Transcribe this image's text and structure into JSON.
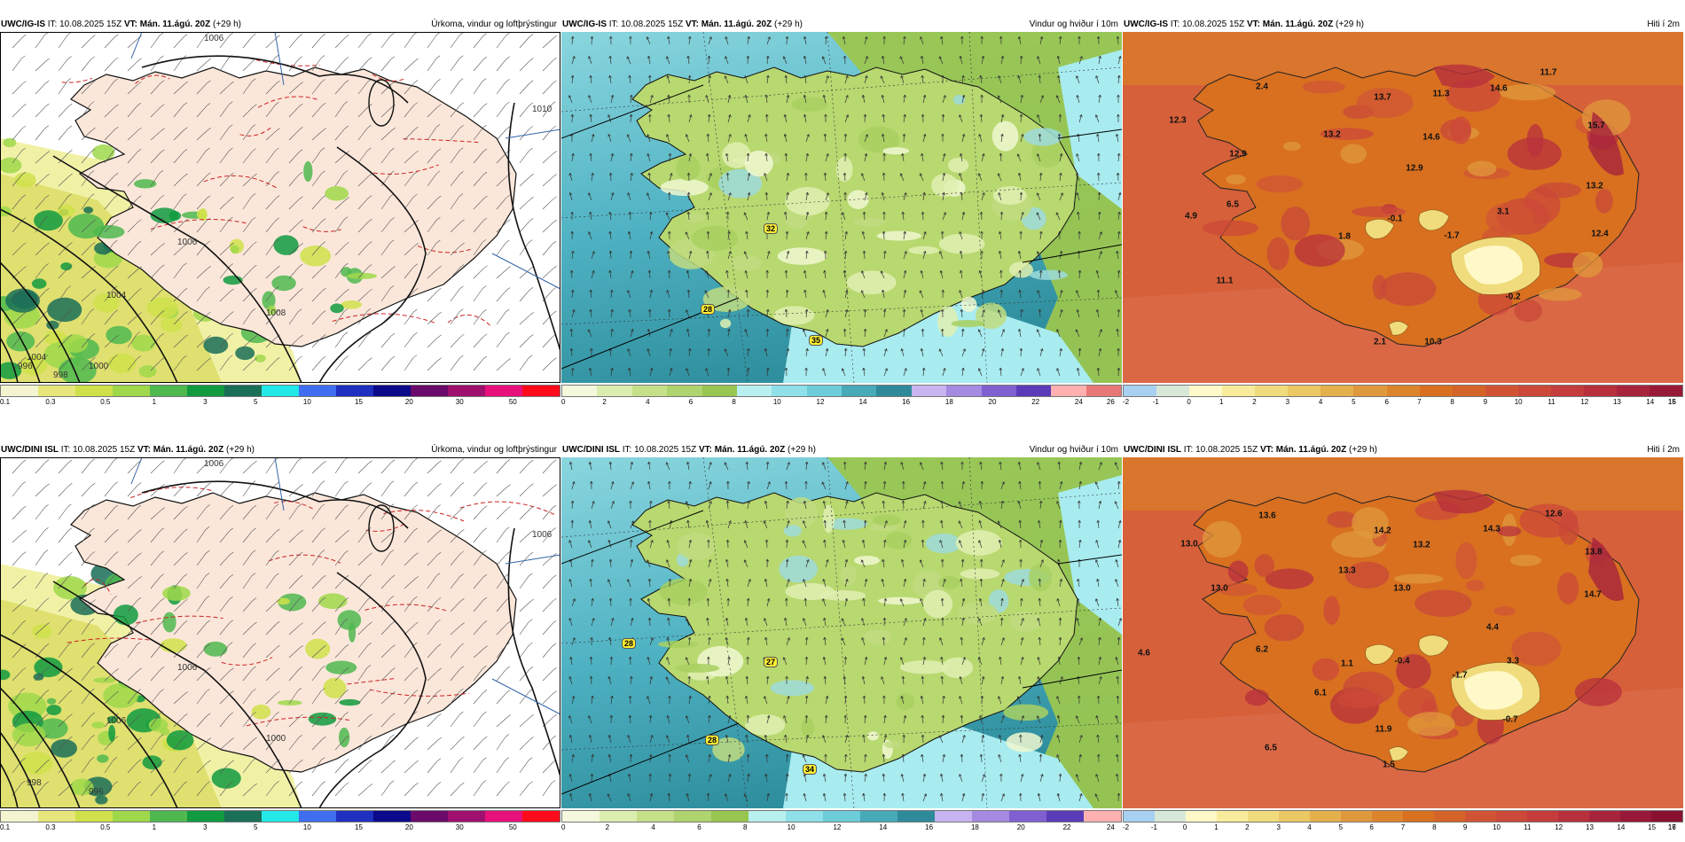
{
  "rows": [
    {
      "panels": [
        {
          "type": "precip",
          "model": "UWC/IG-IS",
          "it": "IT: 10.08.2025 15Z",
          "vt_label": "VT:",
          "vt_value": "Mán. 11.ágú. 20Z",
          "lead": "(+29 h)",
          "title": "Úrkoma, vindur og loftþrýstingur",
          "colorbar": [
            "#f4f4d0",
            "#e6e67a",
            "#cfe04a",
            "#9fd84a",
            "#4fb84f",
            "#119a3f",
            "#1a6f57",
            "#22e8e8",
            "#3f6ff0",
            "#1f2fbf",
            "#0a0a8a",
            "#6a0a6a",
            "#a0106e",
            "#e8107a",
            "#ff0a1a"
          ],
          "ticks": [
            {
              "t": "0.1",
              "p": 0
            },
            {
              "t": "0.3",
              "p": 9
            },
            {
              "t": "0.5",
              "p": 18.8
            },
            {
              "t": "1",
              "p": 27.5
            },
            {
              "t": "3",
              "p": 36.6
            },
            {
              "t": "5",
              "p": 45.6
            },
            {
              "t": "10",
              "p": 54.8
            },
            {
              "t": "15",
              "p": 64
            },
            {
              "t": "20",
              "p": 73
            },
            {
              "t": "30",
              "p": 82
            },
            {
              "t": "50",
              "p": 91.5
            }
          ],
          "isobars": [
            "1006",
            "1006",
            "1004",
            "1008",
            "1010",
            "1004",
            "1000",
            "998",
            "996"
          ],
          "badges": []
        },
        {
          "type": "wind",
          "model": "UWC/IG-IS",
          "it": "IT: 10.08.2025 15Z",
          "vt_label": "VT:",
          "vt_value": "Mán. 11.ágú. 20Z",
          "lead": "(+29 h)",
          "title": "Vindur og hviður í 10m",
          "colorbar": [
            "#f4f8dc",
            "#dcedb0",
            "#c6e08a",
            "#afd36e",
            "#98c650",
            "#b8f0f0",
            "#8fe0e8",
            "#6ccdd8",
            "#46aab8",
            "#2e8a9a",
            "#c8b4f0",
            "#a48ae0",
            "#8060d0",
            "#5a3cb8",
            "#ffb0b0",
            "#e87878"
          ],
          "ticks": [
            {
              "t": "0",
              "p": 0
            },
            {
              "t": "2",
              "p": 7.7
            },
            {
              "t": "4",
              "p": 15.4
            },
            {
              "t": "6",
              "p": 23.1
            },
            {
              "t": "8",
              "p": 30.8
            },
            {
              "t": "10",
              "p": 38.5
            },
            {
              "t": "12",
              "p": 46.2
            },
            {
              "t": "14",
              "p": 53.8
            },
            {
              "t": "16",
              "p": 61.5
            },
            {
              "t": "18",
              "p": 69.2
            },
            {
              "t": "20",
              "p": 76.9
            },
            {
              "t": "22",
              "p": 84.6
            },
            {
              "t": "24",
              "p": 92.3
            },
            {
              "t": "26",
              "p": 98
            }
          ],
          "badges": [
            "32",
            "28",
            "35"
          ]
        },
        {
          "type": "temp",
          "model": "UWC/IG-IS",
          "it": "IT: 10.08.2025 15Z",
          "vt_label": "VT:",
          "vt_value": "Mán. 11.ágú. 20Z",
          "lead": "(+29 h)",
          "title": "Hiti í 2m",
          "colorbar": [
            "#a8d0f0",
            "#d8e8d8",
            "#fff8c8",
            "#f8ec9c",
            "#f0dc7c",
            "#ecc864",
            "#e4b04c",
            "#e0983c",
            "#dc842c",
            "#d87020",
            "#d46428",
            "#d05434",
            "#cc4838",
            "#c43c3c",
            "#b8303c",
            "#a8243c",
            "#981838"
          ],
          "ticks": [
            {
              "t": "-2",
              "p": 0
            },
            {
              "t": "-1",
              "p": 5.9
            },
            {
              "t": "0",
              "p": 11.8
            },
            {
              "t": "1",
              "p": 17.6
            },
            {
              "t": "2",
              "p": 23.5
            },
            {
              "t": "3",
              "p": 29.4
            },
            {
              "t": "4",
              "p": 35.3
            },
            {
              "t": "5",
              "p": 41.2
            },
            {
              "t": "6",
              "p": 47.1
            },
            {
              "t": "7",
              "p": 52.9
            },
            {
              "t": "8",
              "p": 58.8
            },
            {
              "t": "9",
              "p": 64.7
            },
            {
              "t": "10",
              "p": 70.6
            },
            {
              "t": "11",
              "p": 76.5
            },
            {
              "t": "12",
              "p": 82.4
            },
            {
              "t": "13",
              "p": 88.2
            },
            {
              "t": "14",
              "p": 94.1
            },
            {
              "t": "15",
              "p": 100
            },
            {
              "t": "16",
              "p": 106
            }
          ],
          "labels": [
            "2.4",
            "11.7",
            "13.7",
            "11.3",
            "14.6",
            "12.3",
            "13.2",
            "14.6",
            "15.7",
            "12.9",
            "12.9",
            "13.2",
            "6.5",
            "4.9",
            "1.8",
            "-0.1",
            "3.1",
            "-1.7",
            "12.4",
            "11.1",
            "-0.2",
            "10.3",
            "2.1"
          ]
        }
      ]
    },
    {
      "panels": [
        {
          "type": "precip",
          "model": "UWC/DINI ISL",
          "it": "IT: 10.08.2025 15Z",
          "vt_label": "VT:",
          "vt_value": "Mán. 11.ágú. 20Z",
          "lead": "(+29 h)",
          "title": "Úrkoma, vindur og loftþrýstingur",
          "colorbar": [
            "#f4f4d0",
            "#e6e67a",
            "#cfe04a",
            "#9fd84a",
            "#4fb84f",
            "#119a3f",
            "#1a6f57",
            "#22e8e8",
            "#3f6ff0",
            "#1f2fbf",
            "#0a0a8a",
            "#6a0a6a",
            "#a0106e",
            "#e8107a",
            "#ff0a1a"
          ],
          "ticks": [
            {
              "t": "0.1",
              "p": 0
            },
            {
              "t": "0.3",
              "p": 9
            },
            {
              "t": "0.5",
              "p": 18.8
            },
            {
              "t": "1",
              "p": 27.5
            },
            {
              "t": "3",
              "p": 36.6
            },
            {
              "t": "5",
              "p": 45.6
            },
            {
              "t": "10",
              "p": 54.8
            },
            {
              "t": "15",
              "p": 64
            },
            {
              "t": "20",
              "p": 73
            },
            {
              "t": "30",
              "p": 82
            },
            {
              "t": "50",
              "p": 91.5
            }
          ],
          "isobars": [
            "1006",
            "1006",
            "1006",
            "1000",
            "1006",
            "998",
            "996"
          ],
          "badges": []
        },
        {
          "type": "wind",
          "model": "UWC/DINI ISL",
          "it": "IT: 10.08.2025 15Z",
          "vt_label": "VT:",
          "vt_value": "Mán. 11.ágú. 20Z",
          "lead": "(+29 h)",
          "title": "Vindur og hviður í 10m",
          "colorbar": [
            "#f4f8dc",
            "#dcedb0",
            "#c6e08a",
            "#afd36e",
            "#98c650",
            "#b8f0f0",
            "#8fe0e8",
            "#6ccdd8",
            "#46aab8",
            "#2e8a9a",
            "#c8b4f0",
            "#a48ae0",
            "#8060d0",
            "#5a3cb8",
            "#ffb0b0"
          ],
          "ticks": [
            {
              "t": "0",
              "p": 0
            },
            {
              "t": "2",
              "p": 8.2
            },
            {
              "t": "4",
              "p": 16.4
            },
            {
              "t": "6",
              "p": 24.6
            },
            {
              "t": "8",
              "p": 32.8
            },
            {
              "t": "10",
              "p": 41
            },
            {
              "t": "12",
              "p": 49.2
            },
            {
              "t": "14",
              "p": 57.4
            },
            {
              "t": "16",
              "p": 65.6
            },
            {
              "t": "18",
              "p": 73.8
            },
            {
              "t": "20",
              "p": 82
            },
            {
              "t": "22",
              "p": 90.2
            },
            {
              "t": "24",
              "p": 98
            }
          ],
          "badges": [
            "28",
            "27",
            "28",
            "34"
          ]
        },
        {
          "type": "temp",
          "model": "UWC/DINI ISL",
          "it": "IT: 10.08.2025 15Z",
          "vt_label": "VT:",
          "vt_value": "Mán. 11.ágú. 20Z",
          "lead": "(+29 h)",
          "title": "Hiti í 2m",
          "colorbar": [
            "#a8d0f0",
            "#d8e8d8",
            "#fff8c8",
            "#f8ec9c",
            "#f0dc7c",
            "#ecc864",
            "#e4b04c",
            "#e0983c",
            "#dc842c",
            "#d87020",
            "#d46428",
            "#d05434",
            "#cc4838",
            "#c43c3c",
            "#b8303c",
            "#a8243c",
            "#981838",
            "#8a1030"
          ],
          "ticks": [
            {
              "t": "-2",
              "p": 0
            },
            {
              "t": "-1",
              "p": 5.6
            },
            {
              "t": "0",
              "p": 11.1
            },
            {
              "t": "1",
              "p": 16.7
            },
            {
              "t": "2",
              "p": 22.2
            },
            {
              "t": "3",
              "p": 27.8
            },
            {
              "t": "4",
              "p": 33.3
            },
            {
              "t": "5",
              "p": 38.9
            },
            {
              "t": "6",
              "p": 44.4
            },
            {
              "t": "7",
              "p": 50
            },
            {
              "t": "8",
              "p": 55.6
            },
            {
              "t": "9",
              "p": 61.1
            },
            {
              "t": "10",
              "p": 66.7
            },
            {
              "t": "11",
              "p": 72.2
            },
            {
              "t": "12",
              "p": 77.8
            },
            {
              "t": "13",
              "p": 83.3
            },
            {
              "t": "14",
              "p": 88.9
            },
            {
              "t": "15",
              "p": 94.4
            },
            {
              "t": "16",
              "p": 100
            },
            {
              "t": "17",
              "p": 104
            }
          ],
          "labels": [
            "13.6",
            "12.6",
            "13.0",
            "14.2",
            "14.3",
            "13.2",
            "13.3",
            "13.8",
            "13.0",
            "13.0",
            "14.7",
            "4.4",
            "4.6",
            "6.2",
            "1.1",
            "-0.4",
            "3.3",
            "-1.7",
            "6.1",
            "11.9",
            "-0.7",
            "6.5",
            "1.5"
          ]
        }
      ]
    }
  ]
}
